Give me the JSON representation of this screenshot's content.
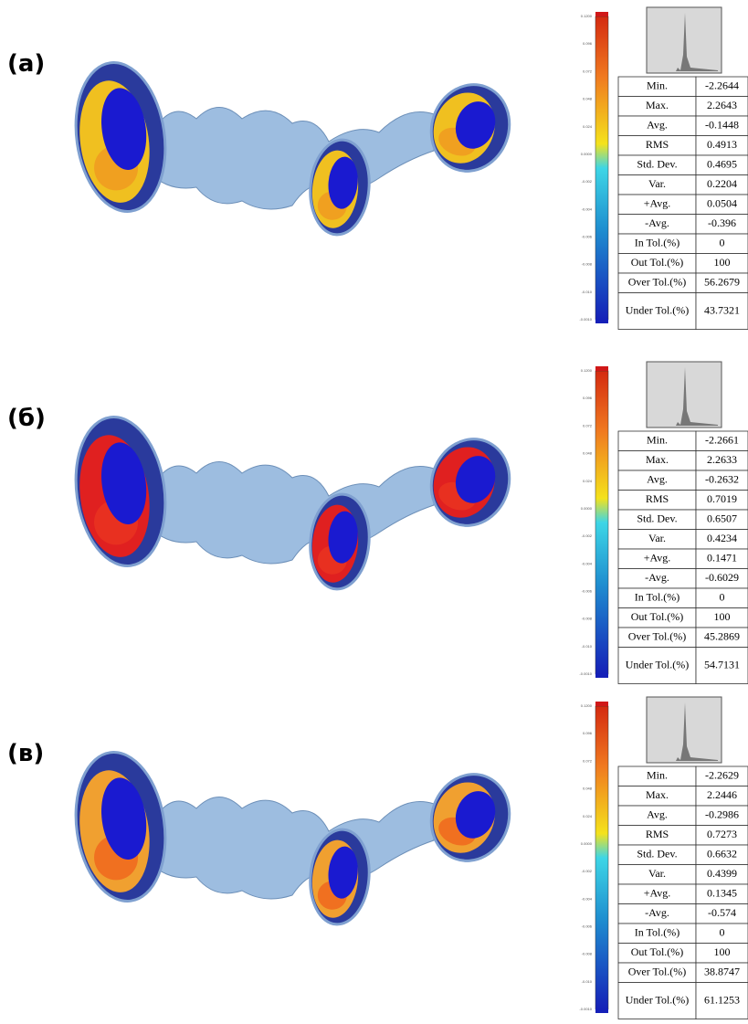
{
  "panels": [
    {
      "label": "(a)",
      "scale_labels": [
        "0.1200",
        "0.096",
        "0.072",
        "0.048",
        "0.024",
        "0.0000",
        "-0.002",
        "-0.004",
        "-0.006",
        "-0.008",
        "-0.010",
        "-0.0010"
      ],
      "stats": [
        [
          "Min.",
          "-2.2644"
        ],
        [
          "Max.",
          "2.2643"
        ],
        [
          "Avg.",
          "-0.1448"
        ],
        [
          "RMS",
          "0.4913"
        ],
        [
          "Std. Dev.",
          "0.4695"
        ],
        [
          "Var.",
          "0.2204"
        ],
        [
          "+Avg.",
          "0.0504"
        ],
        [
          "-Avg.",
          "-0.396"
        ],
        [
          "In Tol.(%)",
          "0"
        ],
        [
          "Out Tol.(%)",
          "100"
        ],
        [
          "Over Tol.(%)",
          "56.2679"
        ],
        [
          "Under Tol.(%)",
          "43.7321"
        ]
      ]
    },
    {
      "label": "(б)",
      "scale_labels": [
        "0.1200",
        "0.096",
        "0.072",
        "0.048",
        "0.024",
        "0.0000",
        "-0.002",
        "-0.004",
        "-0.006",
        "-0.008",
        "-0.010",
        "-0.0010"
      ],
      "stats": [
        [
          "Min.",
          "-2.2661"
        ],
        [
          "Max.",
          "2.2633"
        ],
        [
          "Avg.",
          "-0.2632"
        ],
        [
          "RMS",
          "0.7019"
        ],
        [
          "Std. Dev.",
          "0.6507"
        ],
        [
          "Var.",
          "0.4234"
        ],
        [
          "+Avg.",
          "0.1471"
        ],
        [
          "-Avg.",
          "-0.6029"
        ],
        [
          "In Tol.(%)",
          "0"
        ],
        [
          "Out Tol.(%)",
          "100"
        ],
        [
          "Over Tol.(%)",
          "45.2869"
        ],
        [
          "Under Tol.(%)",
          "54.7131"
        ]
      ]
    },
    {
      "label": "(в)",
      "scale_labels": [
        "0.1200",
        "0.096",
        "0.072",
        "0.048",
        "0.024",
        "0.0000",
        "-0.002",
        "-0.004",
        "-0.006",
        "-0.008",
        "-0.010",
        "-0.0010"
      ],
      "stats": [
        [
          "Min.",
          "-2.2629"
        ],
        [
          "Max.",
          "2.2446"
        ],
        [
          "Avg.",
          "-0.2986"
        ],
        [
          "RMS",
          "0.7273"
        ],
        [
          "Std. Dev.",
          "0.6632"
        ],
        [
          "Var.",
          "0.4399"
        ],
        [
          "+Avg.",
          "0.1345"
        ],
        [
          "-Avg.",
          "-0.574"
        ],
        [
          "In Tol.(%)",
          "0"
        ],
        [
          "Out Tol.(%)",
          "100"
        ],
        [
          "Over Tol.(%)",
          "38.8747"
        ],
        [
          "Under Tol.(%)",
          "61.1253"
        ]
      ]
    }
  ]
}
